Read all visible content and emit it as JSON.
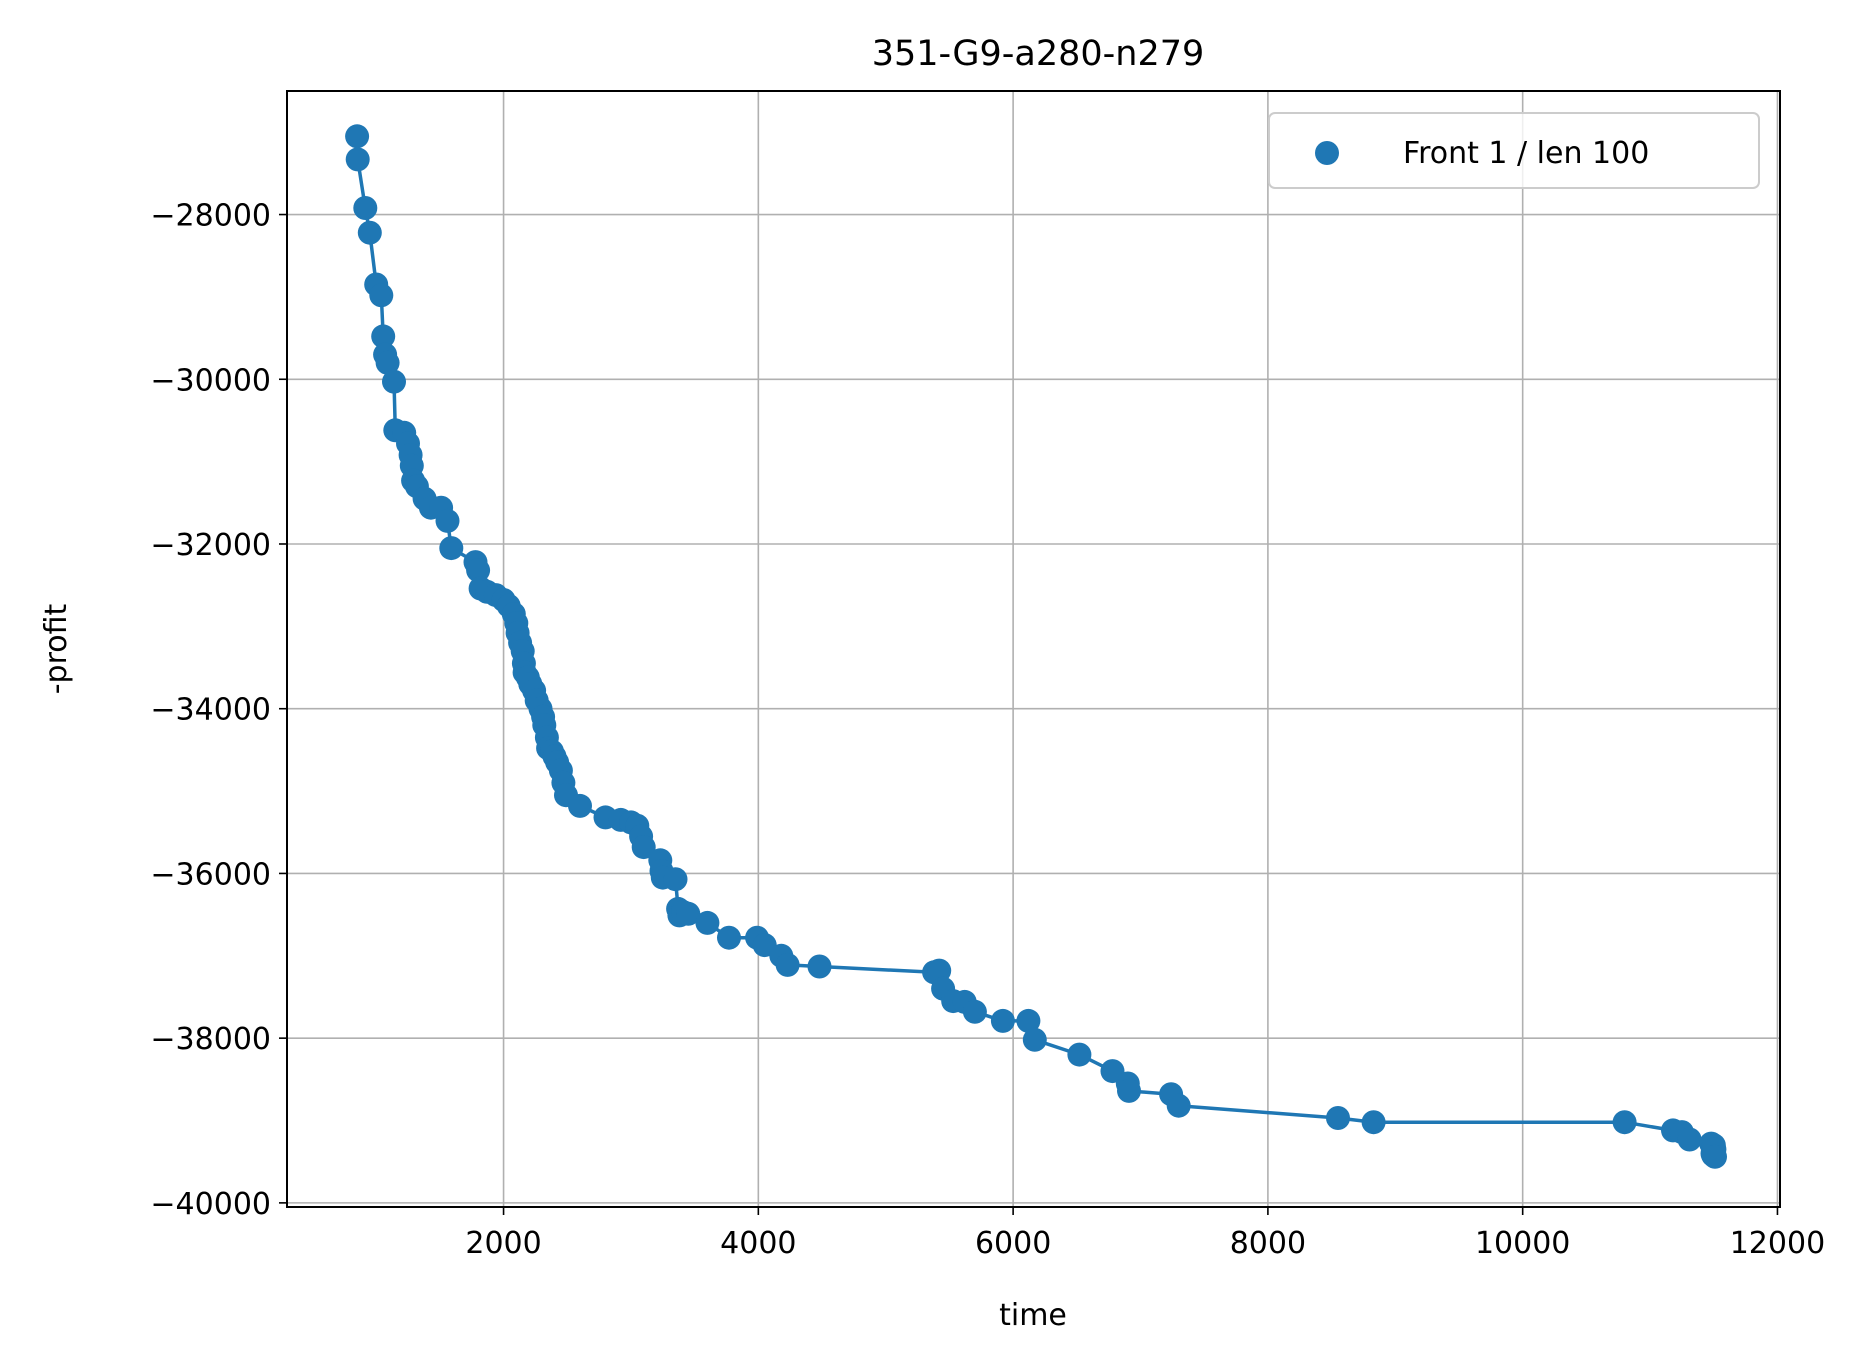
{
  "chart_data": {
    "type": "scatter",
    "title": "351-G9-a280-n279",
    "xlabel": "time",
    "ylabel": "-profit",
    "xlim": [
      300,
      12020
    ],
    "ylim": [
      -40050,
      -26500
    ],
    "xticks": [
      2000,
      4000,
      6000,
      8000,
      10000,
      12000
    ],
    "yticks": [
      -28000,
      -30000,
      -32000,
      -34000,
      -36000,
      -38000,
      -40000
    ],
    "xtick_labels": [
      "2000",
      "4000",
      "6000",
      "8000",
      "10000",
      "12000"
    ],
    "ytick_labels": [
      "−28000",
      "−30000",
      "−32000",
      "−34000",
      "−36000",
      "−38000",
      "−40000"
    ],
    "grid": true,
    "legend": {
      "position": "top-right"
    },
    "colors": {
      "series": "#1f77b4",
      "grid": "#b0b0b0"
    },
    "series": [
      {
        "name": "Front 1 / len 100",
        "connected": true,
        "points": [
          [
            850,
            -27050
          ],
          [
            855,
            -27330
          ],
          [
            915,
            -27920
          ],
          [
            950,
            -28220
          ],
          [
            1000,
            -28850
          ],
          [
            1040,
            -28980
          ],
          [
            1055,
            -29480
          ],
          [
            1070,
            -29700
          ],
          [
            1090,
            -29800
          ],
          [
            1140,
            -30030
          ],
          [
            1150,
            -30620
          ],
          [
            1220,
            -30650
          ],
          [
            1250,
            -30780
          ],
          [
            1270,
            -30920
          ],
          [
            1280,
            -31050
          ],
          [
            1290,
            -31230
          ],
          [
            1320,
            -31300
          ],
          [
            1380,
            -31450
          ],
          [
            1430,
            -31560
          ],
          [
            1510,
            -31560
          ],
          [
            1560,
            -31720
          ],
          [
            1590,
            -32050
          ],
          [
            1780,
            -32220
          ],
          [
            1800,
            -32320
          ],
          [
            1820,
            -32540
          ],
          [
            1870,
            -32580
          ],
          [
            1940,
            -32620
          ],
          [
            2000,
            -32680
          ],
          [
            2040,
            -32750
          ],
          [
            2080,
            -32850
          ],
          [
            2100,
            -32960
          ],
          [
            2110,
            -33080
          ],
          [
            2130,
            -33200
          ],
          [
            2150,
            -33300
          ],
          [
            2160,
            -33450
          ],
          [
            2165,
            -33560
          ],
          [
            2190,
            -33620
          ],
          [
            2210,
            -33700
          ],
          [
            2240,
            -33780
          ],
          [
            2260,
            -33900
          ],
          [
            2290,
            -34000
          ],
          [
            2310,
            -34100
          ],
          [
            2320,
            -34200
          ],
          [
            2340,
            -34350
          ],
          [
            2350,
            -34480
          ],
          [
            2380,
            -34520
          ],
          [
            2400,
            -34580
          ],
          [
            2420,
            -34650
          ],
          [
            2450,
            -34750
          ],
          [
            2470,
            -34900
          ],
          [
            2490,
            -35050
          ],
          [
            2600,
            -35180
          ],
          [
            2800,
            -35320
          ],
          [
            2920,
            -35350
          ],
          [
            3000,
            -35380
          ],
          [
            3050,
            -35420
          ],
          [
            3080,
            -35550
          ],
          [
            3100,
            -35680
          ],
          [
            3230,
            -35840
          ],
          [
            3240,
            -35970
          ],
          [
            3250,
            -36050
          ],
          [
            3350,
            -36070
          ],
          [
            3370,
            -36430
          ],
          [
            3380,
            -36510
          ],
          [
            3410,
            -36470
          ],
          [
            3450,
            -36490
          ],
          [
            3600,
            -36600
          ],
          [
            3770,
            -36780
          ],
          [
            3990,
            -36780
          ],
          [
            4050,
            -36870
          ],
          [
            4180,
            -37000
          ],
          [
            4230,
            -37110
          ],
          [
            4480,
            -37130
          ],
          [
            5380,
            -37200
          ],
          [
            5420,
            -37180
          ],
          [
            5450,
            -37400
          ],
          [
            5530,
            -37550
          ],
          [
            5620,
            -37560
          ],
          [
            5700,
            -37680
          ],
          [
            5920,
            -37790
          ],
          [
            6120,
            -37790
          ],
          [
            6170,
            -38020
          ],
          [
            6520,
            -38200
          ],
          [
            6780,
            -38400
          ],
          [
            6900,
            -38550
          ],
          [
            6910,
            -38640
          ],
          [
            7240,
            -38680
          ],
          [
            7300,
            -38820
          ],
          [
            8550,
            -38970
          ],
          [
            8830,
            -39020
          ],
          [
            10800,
            -39020
          ],
          [
            11180,
            -39120
          ],
          [
            11250,
            -39140
          ],
          [
            11310,
            -39230
          ],
          [
            11480,
            -39280
          ],
          [
            11490,
            -39400
          ],
          [
            11495,
            -39420
          ],
          [
            11500,
            -39300
          ],
          [
            11505,
            -39350
          ],
          [
            11510,
            -39440
          ]
        ]
      }
    ]
  }
}
